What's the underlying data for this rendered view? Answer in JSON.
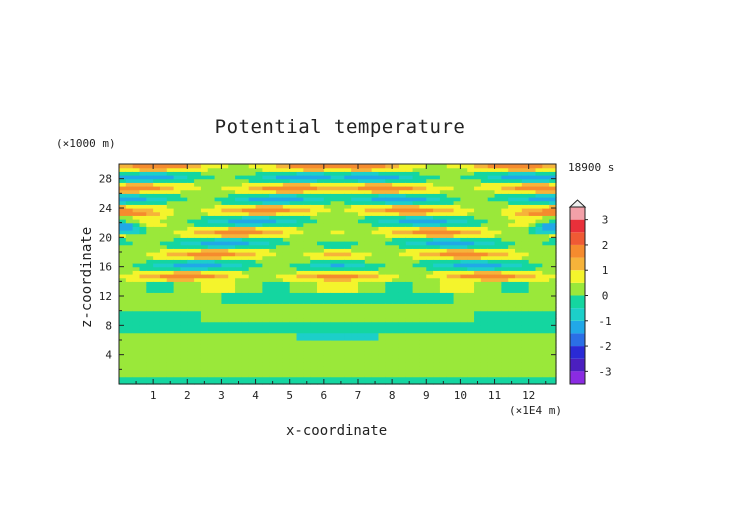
{
  "chart_data": {
    "type": "heatmap",
    "title": "Potential temperature",
    "xlabel": "x-coordinate",
    "ylabel": "z-coordinate",
    "x_unit": "(×1E4 m)",
    "y_unit": "(×1000 m)",
    "time_label": "18900 s",
    "xlim": [
      0,
      12.8
    ],
    "ylim": [
      0,
      30
    ],
    "x_ticks": [
      1,
      2,
      3,
      4,
      5,
      6,
      7,
      8,
      9,
      10,
      11,
      12
    ],
    "y_ticks": [
      4,
      8,
      12,
      16,
      20,
      24,
      28
    ],
    "colorbar": {
      "ticks": [
        3,
        2,
        1,
        0,
        -1,
        -2,
        -3
      ],
      "levels": [
        {
          "min": -3.5,
          "max": -3.0,
          "color": "#8a2be2"
        },
        {
          "min": -3.0,
          "max": -2.5,
          "color": "#4b1fbf"
        },
        {
          "min": -2.5,
          "max": -2.0,
          "color": "#2a2ad6"
        },
        {
          "min": -2.0,
          "max": -1.5,
          "color": "#2b6fe6"
        },
        {
          "min": -1.5,
          "max": -1.0,
          "color": "#21a8e8"
        },
        {
          "min": -1.0,
          "max": -0.5,
          "color": "#1ccfc9"
        },
        {
          "min": -0.5,
          "max": 0.0,
          "color": "#14d6a0"
        },
        {
          "min": 0.0,
          "max": 0.5,
          "color": "#9ae83a"
        },
        {
          "min": 0.5,
          "max": 1.0,
          "color": "#f4f42c"
        },
        {
          "min": 1.0,
          "max": 1.5,
          "color": "#f6b33a"
        },
        {
          "min": 1.5,
          "max": 2.0,
          "color": "#f58b2e"
        },
        {
          "min": 2.0,
          "max": 2.5,
          "color": "#ef5a34"
        },
        {
          "min": 2.5,
          "max": 3.0,
          "color": "#e8303a"
        },
        {
          "min": 3.0,
          "max": 3.5,
          "color": "#f3a0a8"
        }
      ],
      "extend_max": true
    },
    "field_description": "Symmetric gravity-wave pattern centred at x≈6.4; mostly near-zero (green) below z≈12, alternating warm (orange/red) and cool (blue) layers from z≈14 to z≈28.",
    "band_rows": [
      {
        "z": [
          0.0,
          1.0
        ],
        "value": -0.3
      },
      {
        "z": [
          1.0,
          6.0
        ],
        "value": 0.2
      },
      {
        "z": [
          6.0,
          7.0
        ],
        "value": -0.5
      },
      {
        "z": [
          7.0,
          10.0
        ],
        "value": -0.3
      },
      {
        "z": [
          10.0,
          12.0
        ],
        "value": 0.2
      }
    ]
  }
}
